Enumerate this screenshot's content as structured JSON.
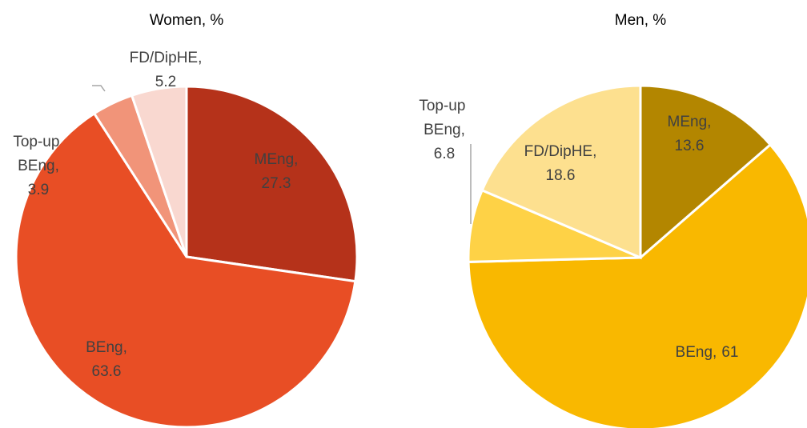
{
  "chart_data": [
    {
      "type": "pie",
      "title": "Women, %",
      "categories": [
        "MEng,",
        "BEng,",
        "Top-up BEng,",
        "FD/DipHE,"
      ],
      "values": [
        27.3,
        63.6,
        3.9,
        5.2
      ],
      "colors": [
        "#b5321a",
        "#e84e25",
        "#f19479",
        "#f9d8d0"
      ]
    },
    {
      "type": "pie",
      "title": "Men, %",
      "categories": [
        "MEng,",
        "BEng,",
        "Top-up BEng,",
        "FD/DipHE,"
      ],
      "values": [
        13.6,
        61,
        6.8,
        18.6
      ],
      "colors": [
        "#b38600",
        "#f9b800",
        "#fed246",
        "#fde08f"
      ]
    }
  ]
}
